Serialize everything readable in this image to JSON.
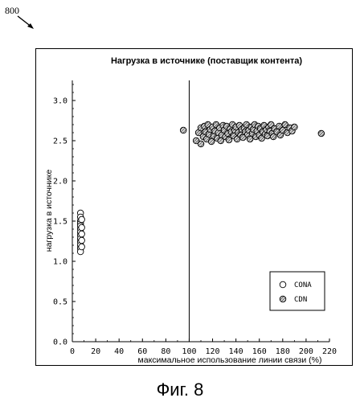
{
  "figure_ref": "800",
  "caption": "Фиг. 8",
  "chart_data": {
    "type": "scatter",
    "title": "Нагрузка в источнике (поставщик контента)",
    "xlabel": "максимальное использование линии связи (%)",
    "ylabel": "нагрузка в источнике",
    "xlim": [
      0,
      220
    ],
    "ylim": [
      0,
      3.25
    ],
    "x_ticks": [
      0,
      20,
      40,
      60,
      80,
      100,
      120,
      140,
      160,
      180,
      200,
      220
    ],
    "y_ticks": [
      0.0,
      0.5,
      1.0,
      1.5,
      2.0,
      2.5,
      3.0
    ],
    "x_tick_labels": [
      "0",
      "20",
      "40",
      "60",
      "80",
      "100",
      "120",
      "140",
      "160",
      "180",
      "200",
      "220"
    ],
    "y_tick_labels": [
      "0.0",
      "0.5",
      "1.0",
      "1.5",
      "2.0",
      "2.5",
      "3.0"
    ],
    "vline_x": 100,
    "grid": false,
    "legend_position": "bottom-right",
    "series": [
      {
        "name": "CONA",
        "marker": "open-circle",
        "color": "#000000",
        "points": [
          [
            7,
            1.6
          ],
          [
            7,
            1.55
          ],
          [
            7,
            1.5
          ],
          [
            7,
            1.47
          ],
          [
            7,
            1.44
          ],
          [
            7,
            1.4
          ],
          [
            7,
            1.36
          ],
          [
            7,
            1.32
          ],
          [
            7,
            1.28
          ],
          [
            7,
            1.24
          ],
          [
            7,
            1.2
          ],
          [
            7,
            1.16
          ],
          [
            7,
            1.12
          ],
          [
            8,
            1.52
          ],
          [
            8,
            1.42
          ],
          [
            8,
            1.34
          ],
          [
            8,
            1.26
          ],
          [
            8,
            1.18
          ]
        ]
      },
      {
        "name": "CDN",
        "marker": "hatched-circle",
        "color": "#333333",
        "points": [
          [
            95,
            2.63
          ],
          [
            106,
            2.5
          ],
          [
            108,
            2.6
          ],
          [
            110,
            2.66
          ],
          [
            110,
            2.46
          ],
          [
            112,
            2.55
          ],
          [
            113,
            2.68
          ],
          [
            114,
            2.61
          ],
          [
            115,
            2.52
          ],
          [
            116,
            2.7
          ],
          [
            117,
            2.58
          ],
          [
            118,
            2.64
          ],
          [
            119,
            2.49
          ],
          [
            120,
            2.67
          ],
          [
            121,
            2.56
          ],
          [
            122,
            2.62
          ],
          [
            123,
            2.7
          ],
          [
            124,
            2.53
          ],
          [
            125,
            2.6
          ],
          [
            126,
            2.66
          ],
          [
            127,
            2.5
          ],
          [
            128,
            2.57
          ],
          [
            129,
            2.69
          ],
          [
            130,
            2.63
          ],
          [
            131,
            2.55
          ],
          [
            132,
            2.68
          ],
          [
            133,
            2.59
          ],
          [
            134,
            2.51
          ],
          [
            135,
            2.65
          ],
          [
            136,
            2.61
          ],
          [
            137,
            2.7
          ],
          [
            138,
            2.56
          ],
          [
            139,
            2.63
          ],
          [
            140,
            2.67
          ],
          [
            141,
            2.52
          ],
          [
            142,
            2.6
          ],
          [
            143,
            2.69
          ],
          [
            144,
            2.57
          ],
          [
            145,
            2.64
          ],
          [
            146,
            2.54
          ],
          [
            147,
            2.66
          ],
          [
            148,
            2.61
          ],
          [
            149,
            2.7
          ],
          [
            150,
            2.58
          ],
          [
            151,
            2.63
          ],
          [
            152,
            2.52
          ],
          [
            153,
            2.67
          ],
          [
            154,
            2.59
          ],
          [
            155,
            2.64
          ],
          [
            156,
            2.7
          ],
          [
            157,
            2.55
          ],
          [
            158,
            2.62
          ],
          [
            159,
            2.68
          ],
          [
            160,
            2.57
          ],
          [
            161,
            2.65
          ],
          [
            162,
            2.53
          ],
          [
            163,
            2.61
          ],
          [
            164,
            2.69
          ],
          [
            165,
            2.58
          ],
          [
            166,
            2.64
          ],
          [
            167,
            2.56
          ],
          [
            168,
            2.67
          ],
          [
            169,
            2.62
          ],
          [
            170,
            2.7
          ],
          [
            171,
            2.59
          ],
          [
            172,
            2.55
          ],
          [
            173,
            2.65
          ],
          [
            175,
            2.61
          ],
          [
            177,
            2.68
          ],
          [
            178,
            2.57
          ],
          [
            180,
            2.63
          ],
          [
            182,
            2.7
          ],
          [
            184,
            2.6
          ],
          [
            186,
            2.66
          ],
          [
            188,
            2.62
          ],
          [
            190,
            2.67
          ],
          [
            213,
            2.59
          ]
        ]
      }
    ]
  }
}
